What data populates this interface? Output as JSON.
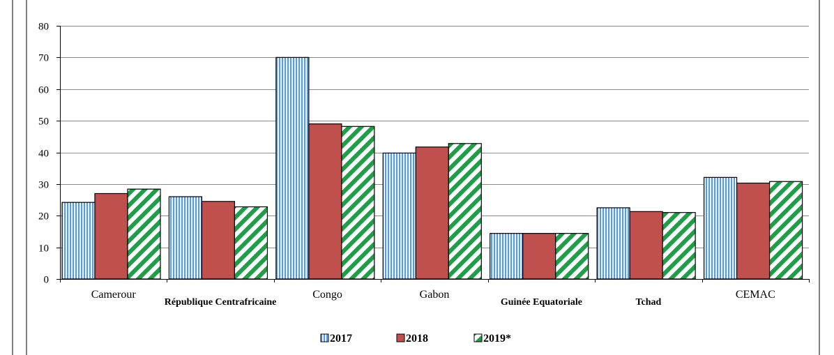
{
  "chart_data": {
    "type": "bar",
    "title": "",
    "xlabel": "",
    "ylabel": "",
    "ylim": [
      0,
      80
    ],
    "yticks": [
      0,
      10,
      20,
      30,
      40,
      50,
      60,
      70,
      80
    ],
    "grid": true,
    "legend_position": "bottom",
    "categories": [
      "Cameroun",
      "République Centrafricaine",
      "Congo",
      "Gabon",
      "Guinée Equatoriale",
      "Tchad",
      "CEMAC"
    ],
    "category_labels_displayed": [
      "Camerour",
      "République Centrafricaine",
      "Congo",
      "Gabon",
      "Guinée Equatoriale",
      "Tchad",
      "CEMAC"
    ],
    "series": [
      {
        "name": "2017",
        "color": "#5b9bd5",
        "pattern": "vertical-stripes",
        "values": [
          24.2,
          26.0,
          70.0,
          39.8,
          14.4,
          22.5,
          32.1
        ]
      },
      {
        "name": "2018",
        "color": "#c0504d",
        "pattern": "solid",
        "values": [
          27.0,
          24.5,
          49.0,
          41.7,
          14.4,
          21.3,
          30.3
        ]
      },
      {
        "name": "2019*",
        "color": "#1f9e4a",
        "pattern": "diagonal-stripes",
        "values": [
          28.4,
          22.8,
          48.2,
          42.8,
          14.4,
          21.0,
          30.8
        ]
      }
    ]
  }
}
